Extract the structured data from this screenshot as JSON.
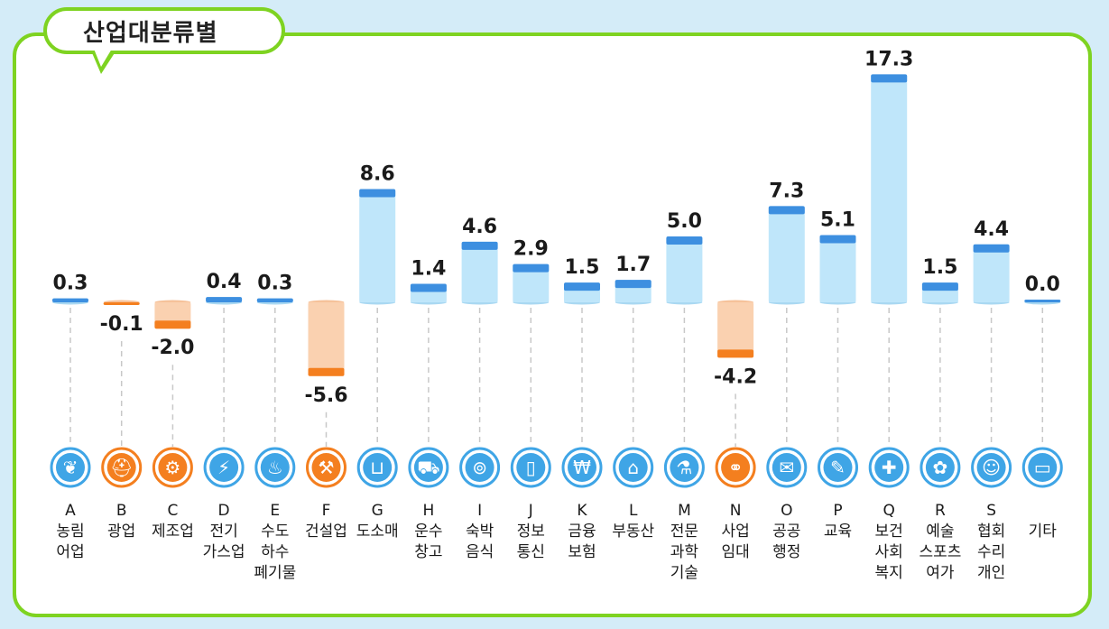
{
  "title": "산업대분류별",
  "colors": {
    "positive_bar": "#bfe6fa",
    "positive_cap": "#3d8fe0",
    "negative_bar": "#fad1b0",
    "negative_cap": "#f47f1f",
    "positive_icon": "#3fa5e6",
    "negative_icon": "#f47f1f",
    "frame": "#7ed321"
  },
  "chart_data": {
    "type": "bar",
    "title": "산업대분류별",
    "xlabel": "",
    "ylabel": "",
    "ylim": [
      -6,
      18
    ],
    "categories": [
      {
        "code": "A",
        "name": [
          "농림",
          "어업"
        ],
        "value": 0.3,
        "label": "0.3",
        "icon": "wheat-icon",
        "glyph": "❦"
      },
      {
        "code": "B",
        "name": [
          "광업"
        ],
        "value": -0.1,
        "label": "-0.1",
        "icon": "hardhat-icon",
        "glyph": "⛑"
      },
      {
        "code": "C",
        "name": [
          "제조업"
        ],
        "value": -2.0,
        "label": "-2.0",
        "icon": "gear-icon",
        "glyph": "⚙"
      },
      {
        "code": "D",
        "name": [
          "전기",
          "가스업"
        ],
        "value": 0.4,
        "label": "0.4",
        "icon": "lightning-icon",
        "glyph": "⚡"
      },
      {
        "code": "E",
        "name": [
          "수도",
          "하수",
          "폐기물"
        ],
        "value": 0.3,
        "label": "0.3",
        "icon": "faucet-icon",
        "glyph": "♨"
      },
      {
        "code": "F",
        "name": [
          "건설업"
        ],
        "value": -5.6,
        "label": "-5.6",
        "icon": "excavator-icon",
        "glyph": "⚒"
      },
      {
        "code": "G",
        "name": [
          "도소매"
        ],
        "value": 8.6,
        "label": "8.6",
        "icon": "basket-icon",
        "glyph": "⊔"
      },
      {
        "code": "H",
        "name": [
          "운수",
          "창고"
        ],
        "value": 1.4,
        "label": "1.4",
        "icon": "truck-icon",
        "glyph": "⛟"
      },
      {
        "code": "I",
        "name": [
          "숙박",
          "음식"
        ],
        "value": 4.6,
        "label": "4.6",
        "icon": "dining-icon",
        "glyph": "⊚"
      },
      {
        "code": "J",
        "name": [
          "정보",
          "통신"
        ],
        "value": 2.9,
        "label": "2.9",
        "icon": "phone-icon",
        "glyph": "▯"
      },
      {
        "code": "K",
        "name": [
          "금융",
          "보험"
        ],
        "value": 1.5,
        "label": "1.5",
        "icon": "won-terminal-icon",
        "glyph": "₩"
      },
      {
        "code": "L",
        "name": [
          "부동산"
        ],
        "value": 1.7,
        "label": "1.7",
        "icon": "house-icon",
        "glyph": "⌂"
      },
      {
        "code": "M",
        "name": [
          "전문",
          "과학",
          "기술"
        ],
        "value": 5.0,
        "label": "5.0",
        "icon": "flask-icon",
        "glyph": "⚗"
      },
      {
        "code": "N",
        "name": [
          "사업",
          "임대"
        ],
        "value": -4.2,
        "label": "-4.2",
        "icon": "handshake-icon",
        "glyph": "⚭"
      },
      {
        "code": "O",
        "name": [
          "공공",
          "행정"
        ],
        "value": 7.3,
        "label": "7.3",
        "icon": "scroll-icon",
        "glyph": "✉"
      },
      {
        "code": "P",
        "name": [
          "교육"
        ],
        "value": 5.1,
        "label": "5.1",
        "icon": "graduation-cap-icon",
        "glyph": "✎"
      },
      {
        "code": "Q",
        "name": [
          "보건",
          "사회",
          "복지"
        ],
        "value": 17.3,
        "label": "17.3",
        "icon": "medical-kit-icon",
        "glyph": "✚"
      },
      {
        "code": "R",
        "name": [
          "예술",
          "스포츠",
          "여가"
        ],
        "value": 1.5,
        "label": "1.5",
        "icon": "palette-icon",
        "glyph": "✿"
      },
      {
        "code": "S",
        "name": [
          "협회",
          "수리",
          "개인"
        ],
        "value": 4.4,
        "label": "4.4",
        "icon": "people-icon",
        "glyph": "☺"
      },
      {
        "code": "",
        "name": [
          "기타"
        ],
        "value": 0.0,
        "label": "0.0",
        "icon": "card-icon",
        "glyph": "▭"
      }
    ]
  }
}
